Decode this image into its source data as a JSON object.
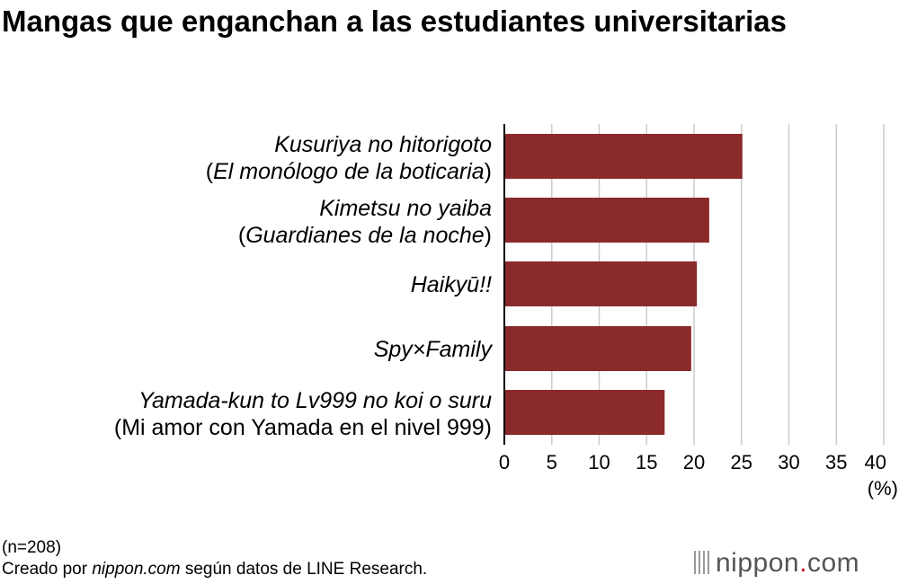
{
  "chart_data": {
    "type": "bar",
    "orientation": "horizontal",
    "title": "Mangas que enganchan a las estudiantes universitarias",
    "categories": [
      [
        "Kusuriya no hitorigoto",
        "(El monólogo de la boticaria)"
      ],
      [
        "Kimetsu no yaiba",
        "(Guardianes de la noche)"
      ],
      [
        "Haikyū!!"
      ],
      [
        "Spy×Family"
      ],
      [
        "Yamada-kun to Lv999 no koi o suru",
        "(Mi amor con Yamada en el nivel 999)"
      ]
    ],
    "values": [
      25.1,
      21.6,
      20.3,
      19.7,
      16.9
    ],
    "xlim": [
      0,
      40
    ],
    "xticks": [
      "0",
      "5",
      "10",
      "15",
      "20",
      "25",
      "30",
      "35",
      "40"
    ],
    "xunit": "(%)",
    "grid": true,
    "bar_color": "#8b2a2b"
  },
  "footer": {
    "sample": "(n=208)",
    "source_prefix": "Creado por ",
    "source_site": "nippon.com",
    "source_suffix": " según datos de LINE Research."
  },
  "logo": {
    "name": "nippon",
    "dot": ".",
    "tld": "com",
    "accent": "#d0021b"
  }
}
